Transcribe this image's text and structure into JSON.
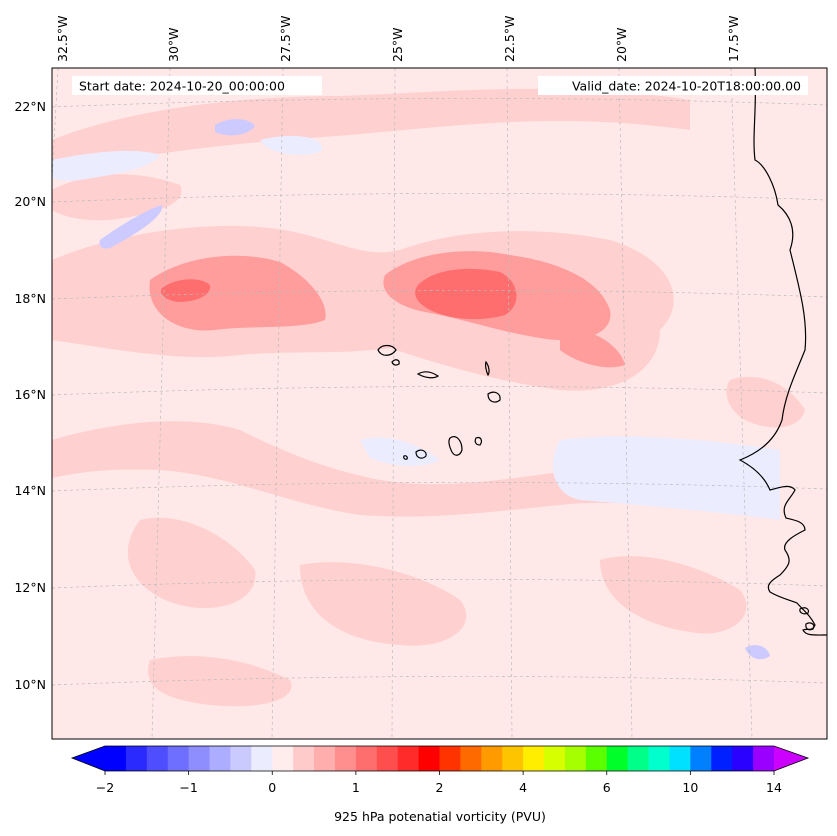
{
  "header": {
    "start_date": "Start date: 2024-10-20_00:00:00",
    "valid_date": "Valid_date: 2024-10-20T18:00:00.00"
  },
  "map": {
    "lon_labels": [
      "32.5°W",
      "30°W",
      "27.5°W",
      "25°W",
      "22.5°W",
      "20°W",
      "17.5°W"
    ],
    "lat_labels": [
      "22°N",
      "20°N",
      "18°N",
      "16°N",
      "14°N",
      "12°N",
      "10°N"
    ],
    "colors": {
      "background": "#ffe8e8",
      "light_red": "#ffd0d0",
      "mid_red": "#ff9d9d",
      "strong_red": "#ff6e6e",
      "light_blue": "#ececff",
      "mid_blue": "#cccaff",
      "coast": "#000000",
      "grid": "#bbbbbb"
    }
  },
  "colorbar": {
    "label": "925 hPa potenatial vorticity (PVU)",
    "tick_labels": [
      "−2",
      "−1",
      "0",
      "1",
      "2",
      "4",
      "6",
      "10",
      "14"
    ],
    "colors": [
      "#0000ff",
      "#2a2aff",
      "#4e4eff",
      "#6e6eff",
      "#8e8eff",
      "#adadff",
      "#cacaff",
      "#ececff",
      "#ffecec",
      "#ffcaca",
      "#ffadad",
      "#ff8e8e",
      "#ff6e6e",
      "#ff4e4e",
      "#ff2a2a",
      "#ff0000",
      "#ff3300",
      "#ff6a00",
      "#ff9a00",
      "#ffc400",
      "#ffee00",
      "#d6ff00",
      "#a6ff00",
      "#5aff00",
      "#00ff2a",
      "#00ff88",
      "#00ffcc",
      "#00e0ff",
      "#0080ff",
      "#0020ff",
      "#2a00ff",
      "#9a00ff"
    ],
    "under_color": "#0000ff",
    "over_color": "#cc00ff"
  }
}
